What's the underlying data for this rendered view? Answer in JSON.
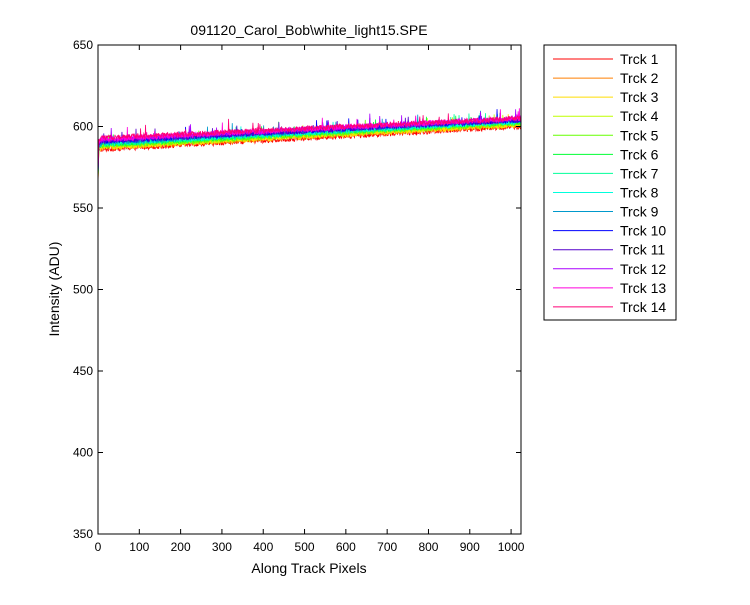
{
  "chart_data": {
    "type": "line",
    "title": "091120_Carol_Bob\\white_light15.SPE",
    "xlabel": "Along Track Pixels",
    "ylabel": "Intensity (ADU)",
    "xlim": [
      0,
      1024
    ],
    "ylim": [
      350,
      650
    ],
    "xticks": [
      0,
      100,
      200,
      300,
      400,
      500,
      600,
      700,
      800,
      900,
      1000
    ],
    "yticks": [
      350,
      400,
      450,
      500,
      550,
      600,
      650
    ],
    "grid": false,
    "legend_position": "outside-right-top",
    "series": [
      {
        "name": "Trck 1",
        "color": "#ff0000",
        "x": [
          0,
          2,
          10,
          1024
        ],
        "y": [
          565,
          585,
          586,
          600
        ]
      },
      {
        "name": "Trck 2",
        "color": "#ff7f00",
        "x": [
          0,
          2,
          10,
          1024
        ],
        "y": [
          566,
          586,
          587,
          601
        ]
      },
      {
        "name": "Trck 3",
        "color": "#ffdd00",
        "x": [
          0,
          2,
          10,
          1024
        ],
        "y": [
          566,
          586,
          587,
          601
        ]
      },
      {
        "name": "Trck 4",
        "color": "#bfff00",
        "x": [
          0,
          2,
          10,
          1024
        ],
        "y": [
          567,
          587,
          588,
          602
        ]
      },
      {
        "name": "Trck 5",
        "color": "#66ff00",
        "x": [
          0,
          2,
          10,
          1024
        ],
        "y": [
          567,
          587,
          588,
          602
        ]
      },
      {
        "name": "Trck 6",
        "color": "#00ff33",
        "x": [
          0,
          2,
          10,
          1024
        ],
        "y": [
          568,
          588,
          589,
          603
        ]
      },
      {
        "name": "Trck 7",
        "color": "#00ff99",
        "x": [
          0,
          2,
          10,
          1024
        ],
        "y": [
          568,
          588,
          589,
          603
        ]
      },
      {
        "name": "Trck 8",
        "color": "#00ffdd",
        "x": [
          0,
          2,
          10,
          1024
        ],
        "y": [
          569,
          589,
          590,
          603
        ]
      },
      {
        "name": "Trck 9",
        "color": "#0099cc",
        "x": [
          0,
          2,
          10,
          1024
        ],
        "y": [
          569,
          589,
          590,
          604
        ]
      },
      {
        "name": "Trck 10",
        "color": "#0000ff",
        "x": [
          0,
          2,
          10,
          1024
        ],
        "y": [
          570,
          590,
          591,
          604
        ]
      },
      {
        "name": "Trck 11",
        "color": "#5500cc",
        "x": [
          0,
          2,
          10,
          1024
        ],
        "y": [
          570,
          590,
          591,
          604
        ]
      },
      {
        "name": "Trck 12",
        "color": "#aa00ff",
        "x": [
          0,
          2,
          10,
          1024
        ],
        "y": [
          571,
          591,
          592,
          605
        ]
      },
      {
        "name": "Trck 13",
        "color": "#ff00dd",
        "x": [
          0,
          2,
          10,
          1024
        ],
        "y": [
          571,
          591,
          592,
          605
        ]
      },
      {
        "name": "Trck 14",
        "color": "#ff0077",
        "x": [
          0,
          2,
          10,
          1024
        ],
        "y": [
          572,
          592,
          593,
          605
        ]
      }
    ]
  }
}
